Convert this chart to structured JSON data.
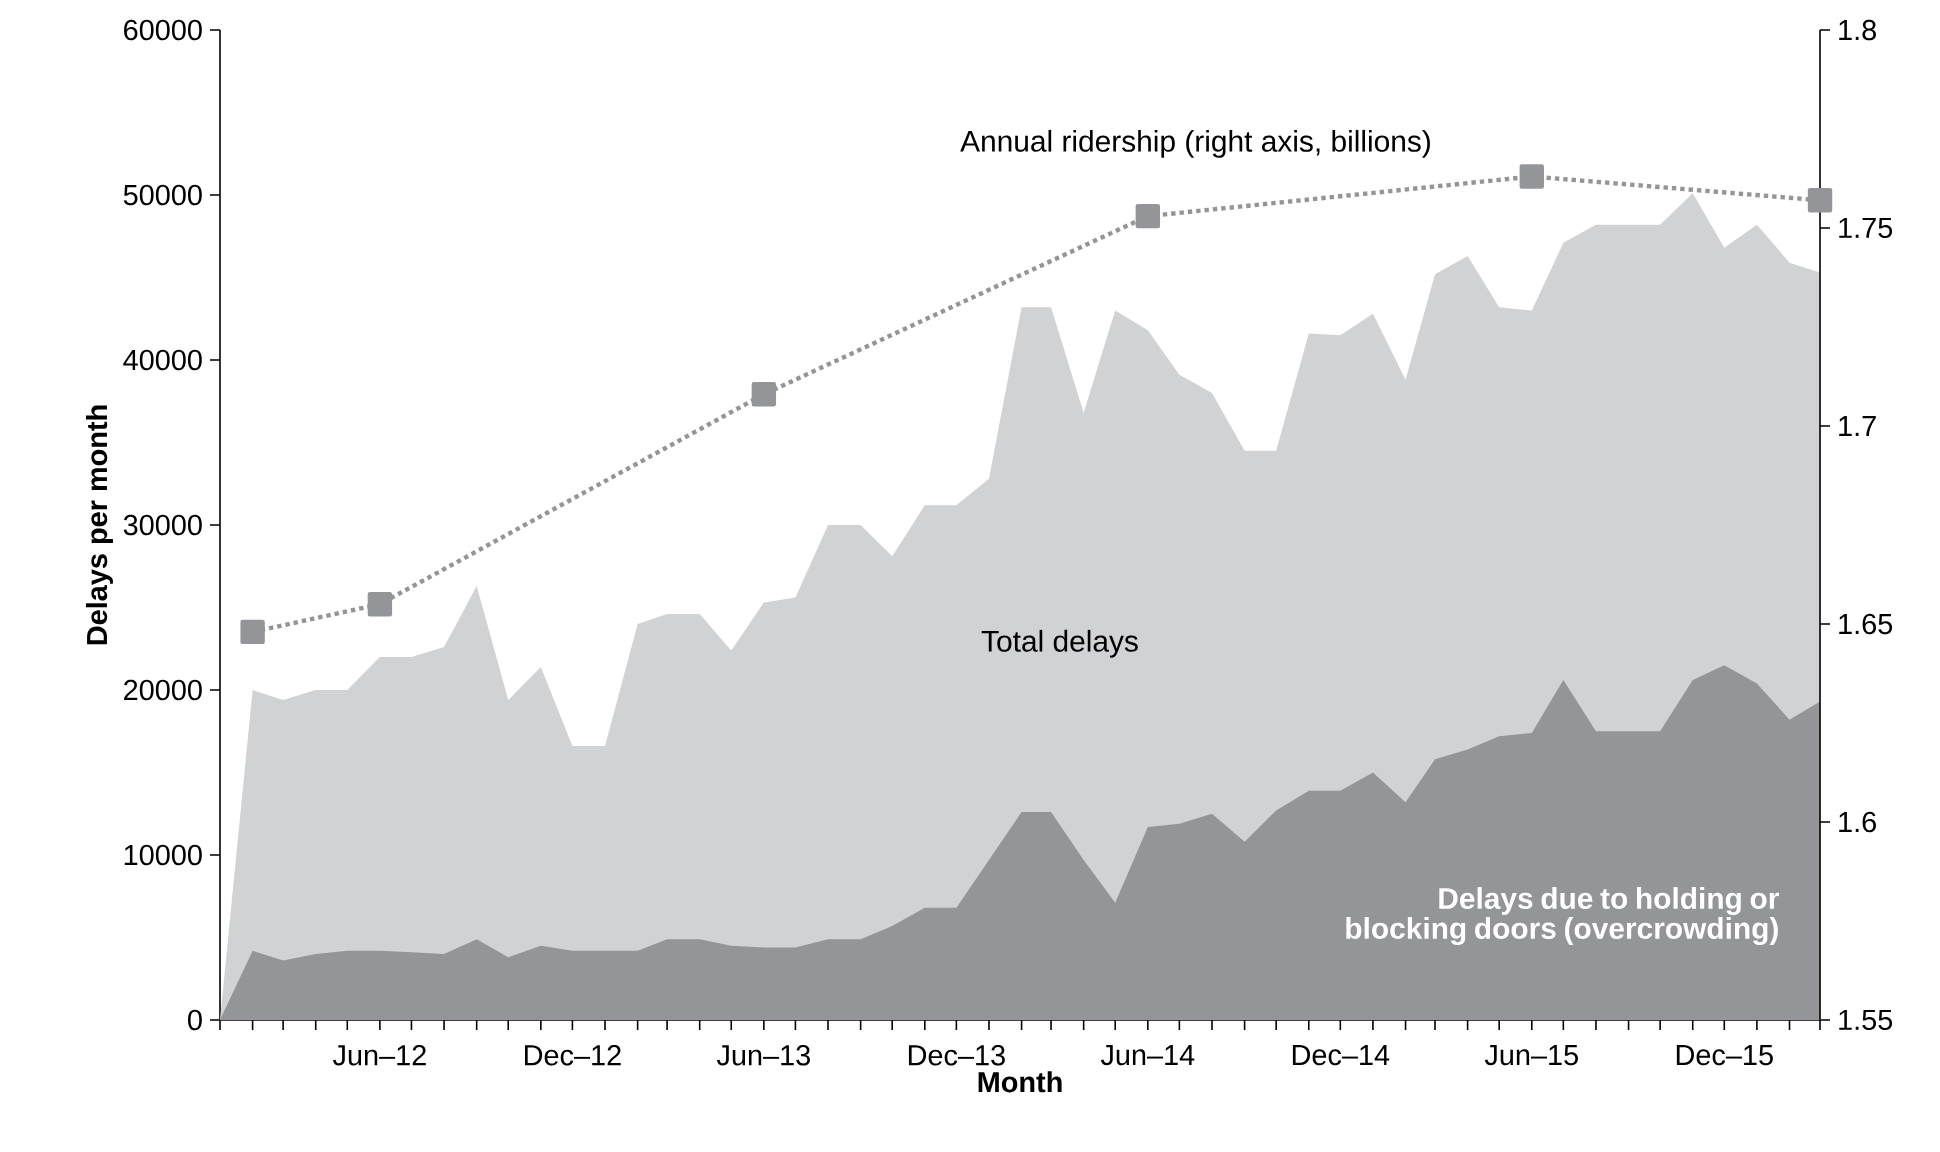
{
  "chart_data": {
    "type": "area",
    "xlabel": "Month",
    "ylabel": "Delays per month",
    "x": [
      "2012-01",
      "2012-02",
      "2012-03",
      "2012-04",
      "2012-05",
      "2012-06",
      "2012-07",
      "2012-08",
      "2012-09",
      "2012-10",
      "2012-11",
      "2012-12",
      "2013-01",
      "2013-02",
      "2013-03",
      "2013-04",
      "2013-05",
      "2013-06",
      "2013-07",
      "2013-08",
      "2013-09",
      "2013-10",
      "2013-11",
      "2013-12",
      "2014-01",
      "2014-02",
      "2014-03",
      "2014-04",
      "2014-05",
      "2014-06",
      "2014-07",
      "2014-08",
      "2014-09",
      "2014-10",
      "2014-11",
      "2014-12",
      "2015-01",
      "2015-02",
      "2015-03",
      "2015-04",
      "2015-05",
      "2015-06",
      "2015-07",
      "2015-08",
      "2015-09",
      "2015-10",
      "2015-11",
      "2015-12",
      "2016-01",
      "2016-02",
      "2016-03"
    ],
    "series": [
      {
        "name": "Total delays",
        "color": "#d1d2d4",
        "values": [
          0,
          20000,
          19400,
          20000,
          20000,
          22000,
          22000,
          22600,
          26300,
          19400,
          21400,
          16600,
          16600,
          24000,
          24600,
          24600,
          22400,
          25300,
          25600,
          30000,
          30000,
          28100,
          31200,
          31200,
          32800,
          43200,
          43200,
          36800,
          43000,
          41800,
          39100,
          38000,
          34500,
          34500,
          41600,
          41500,
          42800,
          38800,
          45200,
          46300,
          43200,
          43000,
          47100,
          48200,
          48200,
          48200,
          50100,
          46800,
          48200,
          45900,
          45300
        ]
      },
      {
        "name": "Delays due to holding or blocking doors (overcrowding)",
        "color": "#939598",
        "values": [
          0,
          4200,
          3600,
          4000,
          4200,
          4200,
          4100,
          4000,
          4900,
          3800,
          4500,
          4200,
          4200,
          4200,
          4900,
          4900,
          4500,
          4400,
          4400,
          4900,
          4900,
          5700,
          6800,
          6800,
          9700,
          12600,
          12600,
          9700,
          7100,
          11700,
          11900,
          12500,
          10800,
          12700,
          13900,
          13900,
          15000,
          13200,
          15800,
          16400,
          17200,
          17400,
          20600,
          17500,
          17500,
          17500,
          20600,
          21500,
          20400,
          18200,
          19300
        ]
      },
      {
        "name": "Annual ridership (right axis, billions)",
        "type": "line",
        "axis": "y2",
        "color": "#939598",
        "marker": "square",
        "line_style": "dotted",
        "x": [
          "2012-02",
          "2012-06",
          "2013-06",
          "2014-06",
          "2015-06",
          "2016-03"
        ],
        "values": [
          1.648,
          1.655,
          1.708,
          1.753,
          1.763,
          1.757
        ]
      }
    ],
    "xlim": [
      "2012-01",
      "2016-03"
    ],
    "xticks": [
      {
        "value": "2012-01",
        "label": null
      },
      {
        "value": "2012-02",
        "label": null
      },
      {
        "value": "2012-03",
        "label": null
      },
      {
        "value": "2012-04",
        "label": null
      },
      {
        "value": "2012-05",
        "label": null
      },
      {
        "value": "2012-06",
        "label": "Jun–12"
      },
      {
        "value": "2012-07",
        "label": null
      },
      {
        "value": "2012-08",
        "label": null
      },
      {
        "value": "2012-09",
        "label": null
      },
      {
        "value": "2012-10",
        "label": null
      },
      {
        "value": "2012-11",
        "label": null
      },
      {
        "value": "2012-12",
        "label": "Dec–12"
      },
      {
        "value": "2013-01",
        "label": null
      },
      {
        "value": "2013-02",
        "label": null
      },
      {
        "value": "2013-03",
        "label": null
      },
      {
        "value": "2013-04",
        "label": null
      },
      {
        "value": "2013-05",
        "label": null
      },
      {
        "value": "2013-06",
        "label": "Jun–13"
      },
      {
        "value": "2013-07",
        "label": null
      },
      {
        "value": "2013-08",
        "label": null
      },
      {
        "value": "2013-09",
        "label": null
      },
      {
        "value": "2013-10",
        "label": null
      },
      {
        "value": "2013-11",
        "label": null
      },
      {
        "value": "2013-12",
        "label": "Dec–13"
      },
      {
        "value": "2014-01",
        "label": null
      },
      {
        "value": "2014-02",
        "label": null
      },
      {
        "value": "2014-03",
        "label": null
      },
      {
        "value": "2014-04",
        "label": null
      },
      {
        "value": "2014-05",
        "label": null
      },
      {
        "value": "2014-06",
        "label": "Jun–14"
      },
      {
        "value": "2014-07",
        "label": null
      },
      {
        "value": "2014-08",
        "label": null
      },
      {
        "value": "2014-09",
        "label": null
      },
      {
        "value": "2014-10",
        "label": null
      },
      {
        "value": "2014-11",
        "label": null
      },
      {
        "value": "2014-12",
        "label": "Dec–14"
      },
      {
        "value": "2015-01",
        "label": null
      },
      {
        "value": "2015-02",
        "label": null
      },
      {
        "value": "2015-03",
        "label": null
      },
      {
        "value": "2015-04",
        "label": null
      },
      {
        "value": "2015-05",
        "label": null
      },
      {
        "value": "2015-06",
        "label": "Jun–15"
      },
      {
        "value": "2015-07",
        "label": null
      },
      {
        "value": "2015-08",
        "label": null
      },
      {
        "value": "2015-09",
        "label": null
      },
      {
        "value": "2015-10",
        "label": null
      },
      {
        "value": "2015-11",
        "label": null
      },
      {
        "value": "2015-12",
        "label": "Dec–15"
      },
      {
        "value": "2016-01",
        "label": null
      },
      {
        "value": "2016-02",
        "label": null
      },
      {
        "value": "2016-03",
        "label": null
      }
    ],
    "ylim": [
      0,
      60000
    ],
    "yticks": [
      0,
      10000,
      20000,
      30000,
      40000,
      50000,
      60000
    ],
    "y2lim": [
      1.55,
      1.8
    ],
    "y2ticks": [
      1.55,
      1.6,
      1.65,
      1.7,
      1.75,
      1.8
    ]
  }
}
